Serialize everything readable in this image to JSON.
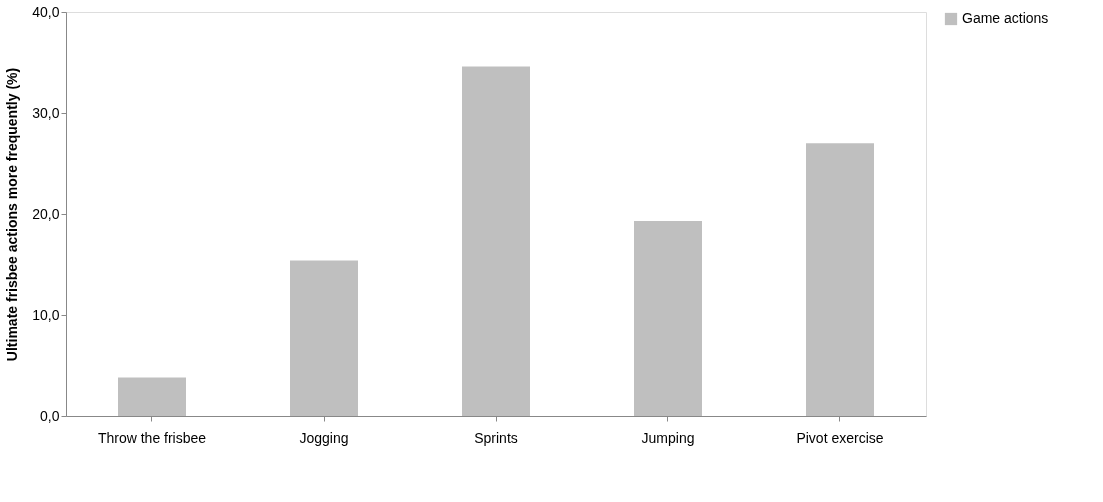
{
  "chart_data": {
    "type": "bar",
    "ylabel": "Ultimate frisbee actions more frequently (%)",
    "categories": [
      "Throw the frisbee",
      "Jogging",
      "Sprints",
      "Jumping",
      "Pivot exercise"
    ],
    "series": [
      {
        "name": "Game actions",
        "color": "#bfbfbf",
        "values": [
          3.8,
          15.4,
          34.6,
          19.3,
          27.0
        ]
      }
    ],
    "ylim": [
      0,
      40
    ],
    "yticks": [
      {
        "value": 0,
        "label": "0,0"
      },
      {
        "value": 10,
        "label": "10,0"
      },
      {
        "value": 20,
        "label": "20,0"
      },
      {
        "value": 30,
        "label": "30,0"
      },
      {
        "value": 40,
        "label": "40,0"
      }
    ],
    "grid": false,
    "legend": "right"
  }
}
